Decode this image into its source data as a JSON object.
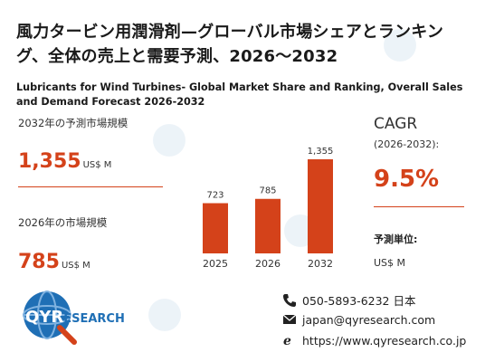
{
  "title_jp": "風力タービン用潤滑剤—グローバル市場シェアとランキング、全体の売上と需要予測、2026～2032",
  "title_en": "Lubricants for Wind Turbines- Global Market Share and Ranking, Overall Sales and Demand Forecast 2026-2032",
  "left": {
    "label_2032": "2032年の予測市場規模",
    "value_2032": "1,355",
    "unit_2032": "US$ M",
    "label_2026": "2026年の市場規模",
    "value_2026": "785",
    "unit_2026": "US$ M"
  },
  "cagr": {
    "title": "CAGR",
    "range": "(2026-2032):",
    "value": "9.5%",
    "unit_label": "予測単位:",
    "unit_value": "US$ M"
  },
  "chart_data": {
    "type": "bar",
    "categories": [
      "2025",
      "2026",
      "2032"
    ],
    "values": [
      723,
      785,
      1355
    ],
    "value_labels": [
      "723",
      "785",
      "1,355"
    ],
    "color": "#d4421a",
    "ylim": [
      0,
      1355
    ]
  },
  "logo": {
    "text_q": "Q",
    "text_y": "Y",
    "text_r": "R",
    "text_rest": "ESEARCH"
  },
  "contact": {
    "phone": "050-5893-6232 日本",
    "email": "japan@qyresearch.com",
    "web": "https://www.qyresearch.co.jp"
  },
  "colors": {
    "accent": "#d4421a",
    "logo_blue": "#1f6fb5"
  }
}
